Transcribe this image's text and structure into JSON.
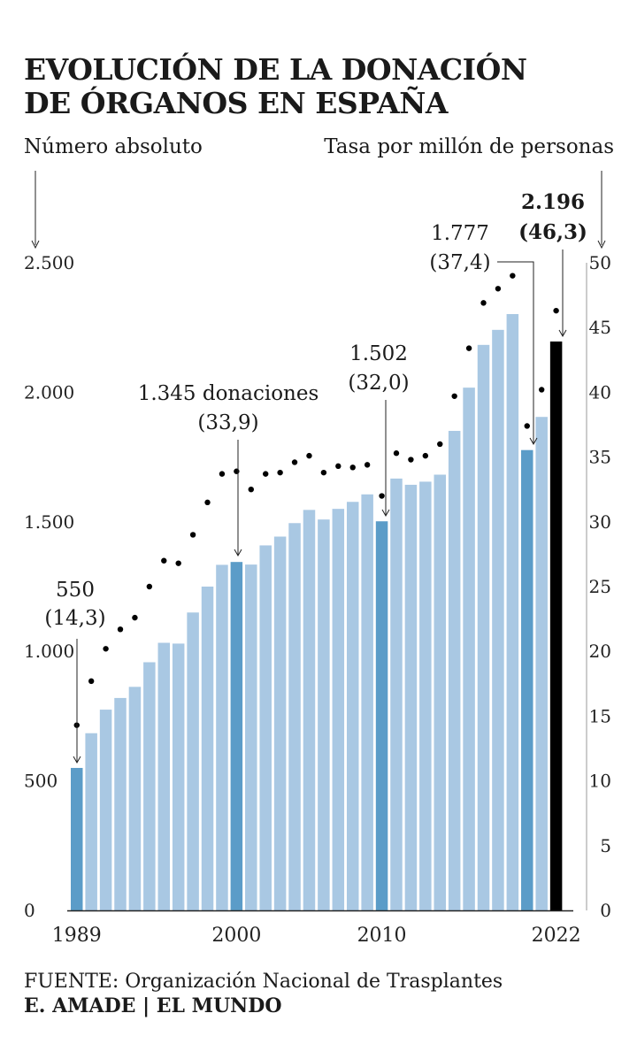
{
  "title": {
    "line1": "EVOLUCIÓN DE LA DONACIÓN",
    "line2": "DE ÓRGANOS EN ESPAÑA"
  },
  "left_axis_title": "Número absoluto",
  "right_axis_title": "Tasa por millón de personas",
  "source": "FUENTE: Organización Nacional de Trasplantes",
  "credit": "E. AMADE | EL MUNDO",
  "colors": {
    "bar": "#a9c8e3",
    "bar_highlight": "#5b9cc8",
    "bar_latest": "#000000",
    "dot": "#000000"
  },
  "chart_data": {
    "type": "bar",
    "x": [
      1989,
      1990,
      1991,
      1992,
      1993,
      1994,
      1995,
      1996,
      1997,
      1998,
      1999,
      2000,
      2001,
      2002,
      2003,
      2004,
      2005,
      2006,
      2007,
      2008,
      2009,
      2010,
      2011,
      2012,
      2013,
      2014,
      2015,
      2016,
      2017,
      2018,
      2019,
      2020,
      2021,
      2022
    ],
    "x_tick_labels": [
      "1989",
      "2000",
      "2010",
      "2022"
    ],
    "series": [
      {
        "axis": "left",
        "kind": "bar",
        "values": [
          550,
          684,
          775,
          820,
          863,
          958,
          1033,
          1030,
          1150,
          1250,
          1334,
          1345,
          1335,
          1409,
          1443,
          1495,
          1546,
          1509,
          1550,
          1577,
          1606,
          1502,
          1667,
          1643,
          1655,
          1682,
          1851,
          2018,
          2183,
          2241,
          2302,
          1777,
          1905,
          2196
        ]
      },
      {
        "axis": "right",
        "kind": "dot",
        "values": [
          14.3,
          17.7,
          20.2,
          21.7,
          22.6,
          25.0,
          27.0,
          26.8,
          29.0,
          31.5,
          33.7,
          33.9,
          32.5,
          33.7,
          33.8,
          34.6,
          35.1,
          33.8,
          34.3,
          34.2,
          34.4,
          32.0,
          35.3,
          34.8,
          35.1,
          36.0,
          39.7,
          43.4,
          46.9,
          48.0,
          49.0,
          37.4,
          40.2,
          46.3
        ]
      }
    ],
    "highlighted_years": [
      1989,
      2000,
      2010,
      2020
    ],
    "latest_year": 2022,
    "annotations": [
      {
        "x": 1989,
        "line1": "550",
        "line2": "(14,3)",
        "bold": false
      },
      {
        "x": 2000,
        "line1": "1.345 donaciones",
        "line2": "(33,9)",
        "bold": false
      },
      {
        "x": 2010,
        "line1": "1.502",
        "line2": "(32,0)",
        "bold": false
      },
      {
        "x": 2020,
        "line1": "1.777",
        "line2": "(37,4)",
        "bold": false
      },
      {
        "x": 2022,
        "line1": "2.196",
        "line2": "(46,3)",
        "bold": true
      }
    ],
    "left_axis": {
      "ylim": [
        0,
        2500
      ],
      "ticks": [
        0,
        500,
        1000,
        1500,
        2000,
        2500
      ],
      "tick_labels": [
        "0",
        "500",
        "1.000",
        "1.500",
        "2.000",
        "2.500"
      ]
    },
    "right_axis": {
      "ylim": [
        0,
        50
      ],
      "ticks": [
        0,
        5,
        10,
        15,
        20,
        25,
        30,
        35,
        40,
        45,
        50
      ],
      "tick_labels": [
        "0",
        "5",
        "10",
        "15",
        "20",
        "25",
        "30",
        "35",
        "40",
        "45",
        "50"
      ]
    },
    "grid": false,
    "legend": "none"
  }
}
